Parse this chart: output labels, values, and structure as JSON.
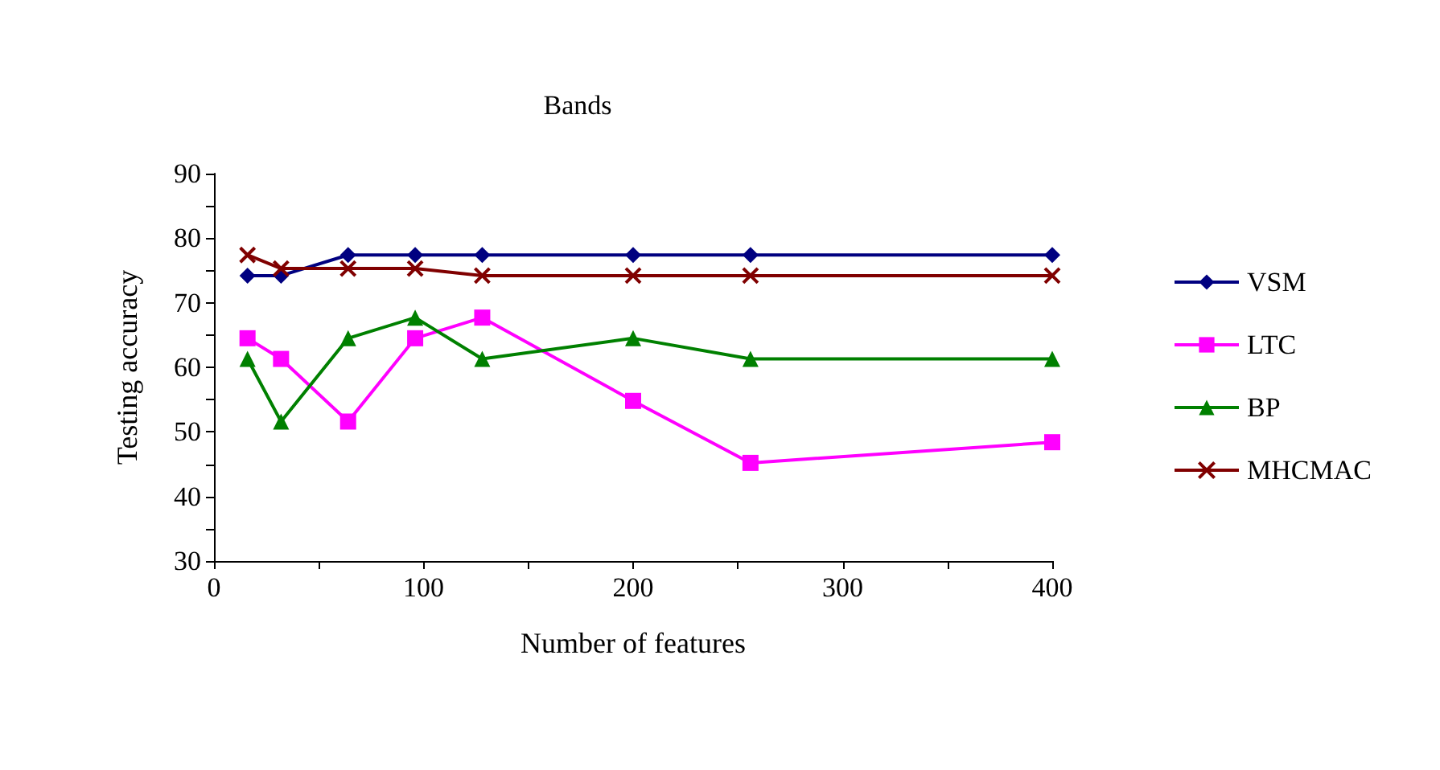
{
  "chart_data": {
    "type": "line",
    "title": "Bands",
    "xlabel": "Number of features",
    "ylabel": "Testing accuracy",
    "x": [
      16,
      32,
      64,
      96,
      128,
      200,
      256,
      400
    ],
    "series": [
      {
        "name": "VSM",
        "color": "#000080",
        "marker": "diamond",
        "values": [
          74.2,
          74.2,
          77.4,
          77.4,
          77.4,
          77.4,
          77.4,
          77.4
        ]
      },
      {
        "name": "LTC",
        "color": "#ff00ff",
        "marker": "square",
        "values": [
          64.5,
          61.3,
          51.6,
          64.5,
          67.7,
          54.8,
          45.2,
          48.4
        ]
      },
      {
        "name": "BP",
        "color": "#008000",
        "marker": "triangle",
        "values": [
          61.3,
          51.6,
          64.5,
          67.7,
          61.3,
          64.5,
          61.3,
          61.3
        ]
      },
      {
        "name": "MHCMAC",
        "color": "#800000",
        "marker": "cross",
        "values": [
          77.4,
          75.3,
          75.3,
          75.3,
          74.2,
          74.2,
          74.2,
          74.2
        ]
      }
    ],
    "xlim": [
      0,
      400
    ],
    "xticks": [
      0,
      {
        "value": 50,
        "label": null
      },
      100,
      {
        "value": 150,
        "label": null
      },
      200,
      {
        "value": 250,
        "label": null
      },
      300,
      {
        "value": 350,
        "label": null
      },
      400
    ],
    "ylim": [
      30,
      90
    ],
    "yticks": [
      30,
      {
        "value": 35,
        "label": null
      },
      40,
      {
        "value": 45,
        "label": null
      },
      50,
      {
        "value": 55,
        "label": null
      },
      60,
      {
        "value": 65,
        "label": null
      },
      70,
      {
        "value": 75,
        "label": null
      },
      80,
      {
        "value": 85,
        "label": null
      },
      90
    ],
    "grid": false,
    "legend": "right",
    "line_style": "solid"
  }
}
